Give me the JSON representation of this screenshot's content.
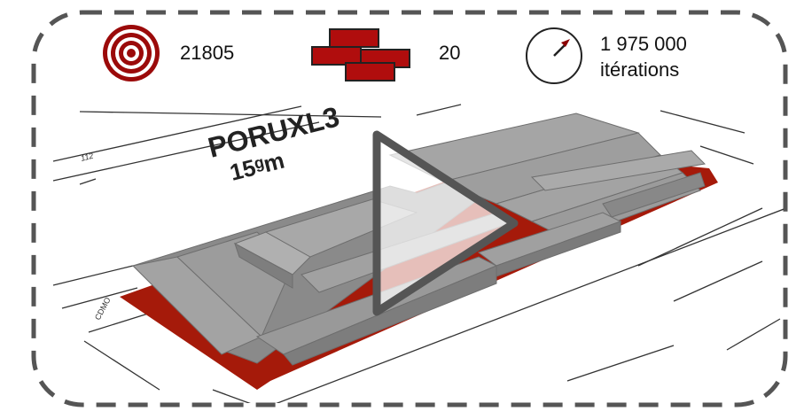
{
  "stats": {
    "score": {
      "icon": "target-icon",
      "value": "21805",
      "color": "#9b0a0a"
    },
    "blocks": {
      "icon": "bricks-icon",
      "value": "20",
      "color": "#b00d0d"
    },
    "iterations": {
      "icon": "gauge-icon",
      "value_line1": "1 975 000",
      "value_line2": "itérations",
      "needle_color": "#8b0000"
    }
  },
  "plan": {
    "zone_label": "PORUXL3",
    "height_label": "15ᵍm",
    "plot_number": "112",
    "side_label": "CDMO"
  },
  "video": {
    "play_icon": "play-icon"
  },
  "colors": {
    "frame": "#555555",
    "building": "#9a9a9a",
    "ground": "#a51a0a"
  }
}
